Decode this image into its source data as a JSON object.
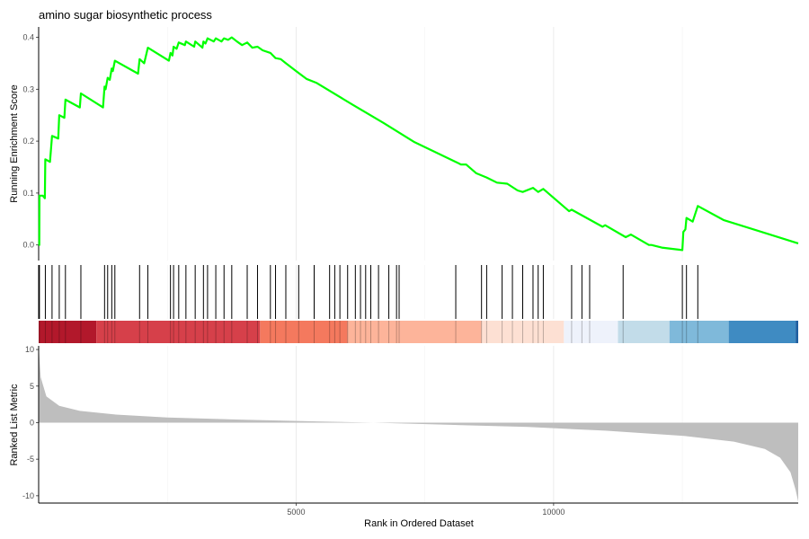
{
  "chart_data": {
    "type": "line",
    "title": "amino sugar biosynthetic process",
    "xlabel": "Rank in Ordered Dataset",
    "x_ticks": [
      5000,
      10000
    ],
    "xlim": [
      0,
      14750
    ],
    "panels": {
      "enrichment": {
        "ylabel": "Running Enrichment Score",
        "ylim": [
          -0.03,
          0.42
        ],
        "y_ticks": [
          0.0,
          0.1,
          0.2,
          0.3,
          0.4
        ],
        "color": "#00ff00",
        "points": [
          [
            0,
            0.0
          ],
          [
            12,
            0.0
          ],
          [
            15,
            0.095
          ],
          [
            80,
            0.095
          ],
          [
            120,
            0.09
          ],
          [
            130,
            0.165
          ],
          [
            220,
            0.16
          ],
          [
            260,
            0.21
          ],
          [
            380,
            0.205
          ],
          [
            400,
            0.25
          ],
          [
            500,
            0.245
          ],
          [
            520,
            0.28
          ],
          [
            800,
            0.265
          ],
          [
            820,
            0.292
          ],
          [
            1250,
            0.265
          ],
          [
            1280,
            0.305
          ],
          [
            1300,
            0.3
          ],
          [
            1340,
            0.322
          ],
          [
            1380,
            0.318
          ],
          [
            1420,
            0.34
          ],
          [
            1440,
            0.335
          ],
          [
            1480,
            0.355
          ],
          [
            1930,
            0.33
          ],
          [
            1960,
            0.358
          ],
          [
            2050,
            0.35
          ],
          [
            2120,
            0.38
          ],
          [
            2530,
            0.355
          ],
          [
            2560,
            0.37
          ],
          [
            2600,
            0.365
          ],
          [
            2620,
            0.382
          ],
          [
            2680,
            0.378
          ],
          [
            2720,
            0.39
          ],
          [
            2840,
            0.385
          ],
          [
            2860,
            0.392
          ],
          [
            3020,
            0.382
          ],
          [
            3040,
            0.392
          ],
          [
            3180,
            0.38
          ],
          [
            3200,
            0.392
          ],
          [
            3240,
            0.388
          ],
          [
            3280,
            0.398
          ],
          [
            3400,
            0.392
          ],
          [
            3440,
            0.398
          ],
          [
            3550,
            0.392
          ],
          [
            3600,
            0.398
          ],
          [
            3680,
            0.395
          ],
          [
            3750,
            0.4
          ],
          [
            3850,
            0.392
          ],
          [
            3950,
            0.385
          ],
          [
            4050,
            0.39
          ],
          [
            4150,
            0.38
          ],
          [
            4250,
            0.382
          ],
          [
            4350,
            0.375
          ],
          [
            4500,
            0.37
          ],
          [
            4600,
            0.36
          ],
          [
            4700,
            0.358
          ],
          [
            4800,
            0.35
          ],
          [
            5000,
            0.335
          ],
          [
            5200,
            0.32
          ],
          [
            5400,
            0.312
          ],
          [
            6100,
            0.27
          ],
          [
            6700,
            0.235
          ],
          [
            7300,
            0.198
          ],
          [
            8100,
            0.16
          ],
          [
            8200,
            0.155
          ],
          [
            8300,
            0.155
          ],
          [
            8500,
            0.138
          ],
          [
            8700,
            0.13
          ],
          [
            8900,
            0.12
          ],
          [
            9100,
            0.118
          ],
          [
            9300,
            0.105
          ],
          [
            9400,
            0.102
          ],
          [
            9600,
            0.11
          ],
          [
            9700,
            0.102
          ],
          [
            9800,
            0.108
          ],
          [
            10300,
            0.065
          ],
          [
            10350,
            0.068
          ],
          [
            10950,
            0.035
          ],
          [
            11000,
            0.038
          ],
          [
            11400,
            0.015
          ],
          [
            11500,
            0.02
          ],
          [
            11850,
            0.0
          ],
          [
            11900,
            0.0
          ],
          [
            12100,
            -0.005
          ],
          [
            12500,
            -0.01
          ],
          [
            12520,
            0.025
          ],
          [
            12560,
            0.03
          ],
          [
            12580,
            0.052
          ],
          [
            12700,
            0.045
          ],
          [
            12800,
            0.075
          ],
          [
            13300,
            0.048
          ],
          [
            14750,
            0.003
          ]
        ]
      },
      "hits": {
        "positions": [
          15,
          130,
          260,
          400,
          520,
          820,
          1280,
          1340,
          1420,
          1480,
          1960,
          2120,
          2560,
          2620,
          2720,
          2860,
          3040,
          3200,
          3280,
          3440,
          3600,
          3750,
          4050,
          4250,
          4500,
          4600,
          4800,
          5050,
          5350,
          5650,
          5750,
          5850,
          6000,
          6150,
          6250,
          6350,
          6450,
          6600,
          6800,
          6950,
          7000,
          8100,
          8600,
          8700,
          9000,
          9200,
          9400,
          9600,
          9700,
          9800,
          10350,
          10550,
          10700,
          11350,
          12500,
          12580,
          12800
        ]
      },
      "color_bar": {
        "segments": [
          {
            "end": 1120,
            "color": "#b2182b"
          },
          {
            "end": 4300,
            "color": "#d6404a"
          },
          {
            "end": 6000,
            "color": "#f4795e"
          },
          {
            "end": 8600,
            "color": "#fdb49a"
          },
          {
            "end": 10200,
            "color": "#fde0d3"
          },
          {
            "end": 11250,
            "color": "#eef2fb"
          },
          {
            "end": 12250,
            "color": "#c2dce9"
          },
          {
            "end": 13400,
            "color": "#7fb9da"
          },
          {
            "end": 14700,
            "color": "#3f8bc2"
          },
          {
            "end": 14750,
            "color": "#1f5fa0"
          }
        ]
      },
      "ranked_metric": {
        "ylabel": "Ranked List Metric",
        "ylim": [
          -11,
          10.5
        ],
        "y_ticks": [
          10,
          5,
          0,
          -5,
          -10
        ],
        "fill": "#bebebe",
        "points": [
          [
            0,
            10.5
          ],
          [
            40,
            6.2
          ],
          [
            150,
            3.6
          ],
          [
            400,
            2.3
          ],
          [
            800,
            1.6
          ],
          [
            1500,
            1.1
          ],
          [
            2500,
            0.7
          ],
          [
            4000,
            0.4
          ],
          [
            5500,
            0.15
          ],
          [
            6500,
            0.0
          ],
          [
            8000,
            -0.3
          ],
          [
            9500,
            -0.6
          ],
          [
            11000,
            -1.1
          ],
          [
            12500,
            -1.8
          ],
          [
            13500,
            -2.6
          ],
          [
            14100,
            -3.6
          ],
          [
            14400,
            -4.8
          ],
          [
            14600,
            -6.8
          ],
          [
            14700,
            -9.2
          ],
          [
            14750,
            -10.8
          ]
        ]
      }
    }
  }
}
